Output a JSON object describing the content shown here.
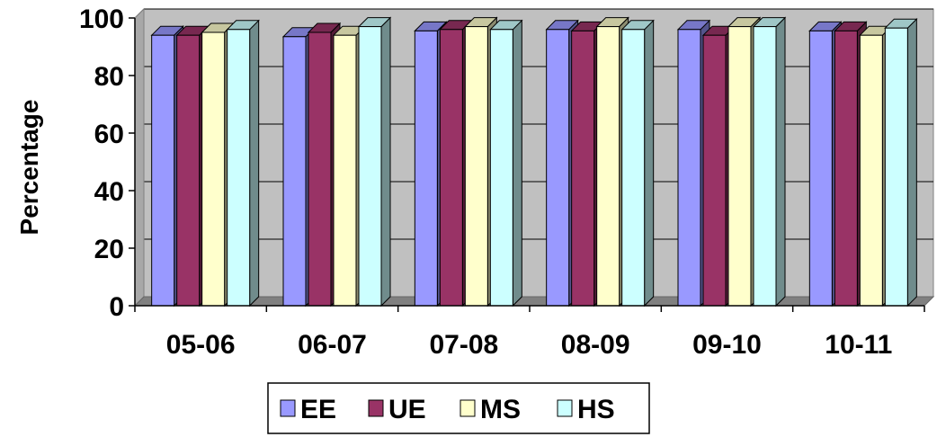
{
  "chart_data": {
    "type": "bar",
    "title": "",
    "xlabel": "",
    "ylabel": "Percentage",
    "ylim": [
      0,
      100
    ],
    "yticks": [
      "0",
      "20",
      "40",
      "60",
      "80",
      "100"
    ],
    "grid": true,
    "legend_position": "bottom",
    "style": "3d-clustered-column",
    "categories": [
      "05-06",
      "06-07",
      "07-08",
      "08-09",
      "09-10",
      "10-11"
    ],
    "series": [
      {
        "name": "EE",
        "color": "#9999FF",
        "values": [
          94,
          93.5,
          95.5,
          96,
          96,
          95.5
        ]
      },
      {
        "name": "UE",
        "color": "#993366",
        "values": [
          94,
          95,
          96,
          95.5,
          94,
          95.5
        ]
      },
      {
        "name": "MS",
        "color": "#FFFFCC",
        "values": [
          95,
          94,
          97,
          97,
          97,
          94
        ]
      },
      {
        "name": "HS",
        "color": "#CCFFFF",
        "values": [
          96,
          97,
          96,
          96,
          97,
          96.5
        ]
      }
    ],
    "colors": {
      "plot_background": "#C0C0C0",
      "floor": "#808080",
      "gridline": "#000000"
    }
  }
}
